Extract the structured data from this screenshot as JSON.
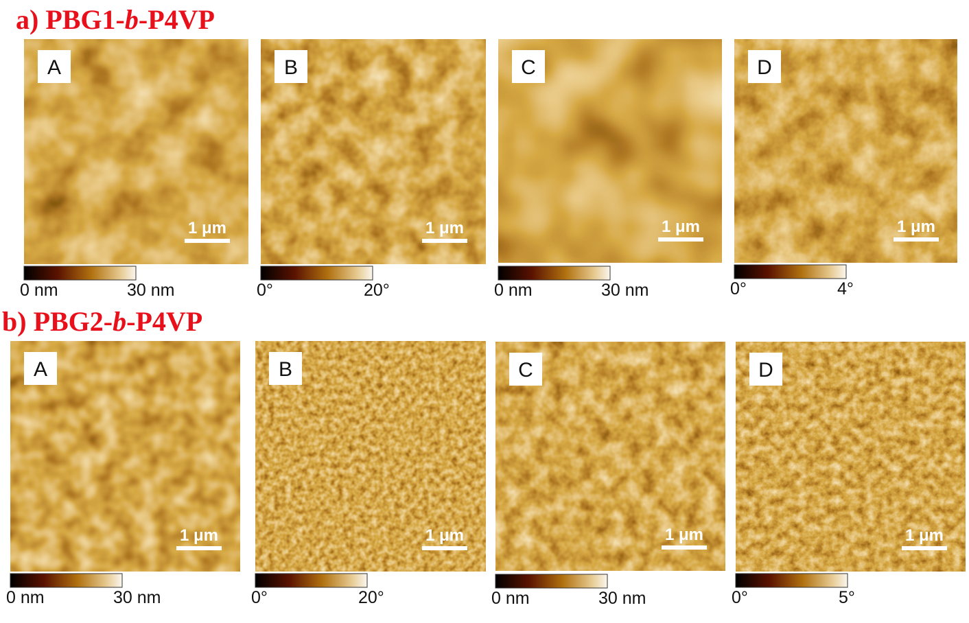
{
  "rows": [
    {
      "title": {
        "prefix": "a) PBG1-",
        "italic": "b",
        "suffix": "-P4VP"
      },
      "panels": [
        {
          "label": "A",
          "scale_bar": "1 μm",
          "colorbar": {
            "min": "0 nm",
            "max": "30 nm"
          }
        },
        {
          "label": "B",
          "scale_bar": "1 μm",
          "colorbar": {
            "min": "0°",
            "max": "20°"
          }
        },
        {
          "label": "C",
          "scale_bar": "1 μm",
          "colorbar": {
            "min": "0 nm",
            "max": "30 nm"
          }
        },
        {
          "label": "D",
          "scale_bar": "1 μm",
          "colorbar": {
            "min": "0°",
            "max": "4°"
          }
        }
      ]
    },
    {
      "title": {
        "prefix": "b) PBG2-",
        "italic": "b",
        "suffix": "-P4VP"
      },
      "panels": [
        {
          "label": "A",
          "scale_bar": "1 μm",
          "colorbar": {
            "min": "0 nm",
            "max": "30 nm"
          }
        },
        {
          "label": "B",
          "scale_bar": "1 μm",
          "colorbar": {
            "min": "0°",
            "max": "20°"
          }
        },
        {
          "label": "C",
          "scale_bar": "1 μm",
          "colorbar": {
            "min": "0 nm",
            "max": "30 nm"
          }
        },
        {
          "label": "D",
          "scale_bar": "1 μm",
          "colorbar": {
            "min": "0°",
            "max": "5°"
          }
        }
      ]
    }
  ]
}
